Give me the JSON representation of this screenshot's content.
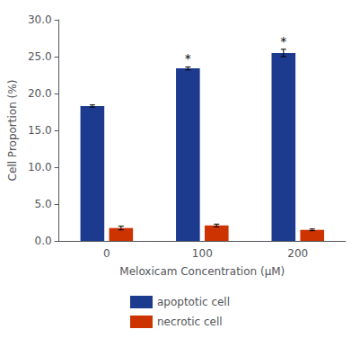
{
  "chart_data": {
    "type": "bar",
    "categories": [
      "0",
      "100",
      "200"
    ],
    "series": [
      {
        "name": "apoptotic cell",
        "color": "#1c3a8e",
        "values": [
          18.3,
          23.4,
          25.5
        ],
        "errors": [
          0.15,
          0.2,
          0.5
        ]
      },
      {
        "name": "necrotic cell",
        "color": "#cc3300",
        "values": [
          1.75,
          2.1,
          1.5
        ],
        "errors": [
          0.25,
          0.18,
          0.12
        ]
      }
    ],
    "xlabel": "Meloxicam Concentration (μM)",
    "ylabel": "Cell Proportion (%)",
    "ylim": [
      0,
      30.0
    ],
    "yticks": [
      {
        "value": 0.0,
        "label": "0.0"
      },
      {
        "value": 5.0,
        "label": "5.0"
      },
      {
        "value": 10.0,
        "label": "10.0"
      },
      {
        "value": 15.0,
        "label": "15.0"
      },
      {
        "value": 20.0,
        "label": "20.0"
      },
      {
        "value": 25.0,
        "label": "25.0"
      },
      {
        "value": 30.0,
        "label": "30.0"
      }
    ],
    "annotations": [
      {
        "category": "100",
        "series": "apoptotic cell",
        "text": "*"
      },
      {
        "category": "200",
        "series": "apoptotic cell",
        "text": "*"
      }
    ],
    "grid": false,
    "legend": "bottom"
  }
}
